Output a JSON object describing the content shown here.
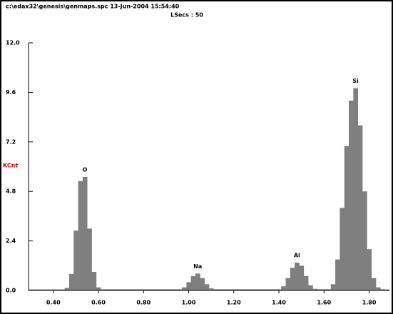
{
  "chart_data": {
    "type": "spectrum",
    "title": "c:\\edax32\\genesis\\genmaps.spc  13-Jun-2004 15:54:40",
    "subtitle": "LSecs : 50",
    "ylabel": "KCnt",
    "x": [
      0.3,
      0.32,
      0.34,
      0.36,
      0.38,
      0.4,
      0.42,
      0.44,
      0.46,
      0.48,
      0.5,
      0.52,
      0.54,
      0.56,
      0.58,
      0.6,
      0.62,
      0.64,
      0.66,
      0.68,
      0.7,
      0.72,
      0.74,
      0.76,
      0.78,
      0.8,
      0.82,
      0.84,
      0.86,
      0.88,
      0.9,
      0.92,
      0.94,
      0.96,
      0.98,
      1.0,
      1.02,
      1.04,
      1.06,
      1.08,
      1.1,
      1.12,
      1.14,
      1.16,
      1.18,
      1.2,
      1.22,
      1.24,
      1.26,
      1.28,
      1.3,
      1.32,
      1.34,
      1.36,
      1.38,
      1.4,
      1.42,
      1.44,
      1.46,
      1.48,
      1.5,
      1.52,
      1.54,
      1.56,
      1.58,
      1.6,
      1.62,
      1.64,
      1.66,
      1.68,
      1.7,
      1.72,
      1.74,
      1.76,
      1.78,
      1.8,
      1.82,
      1.84,
      1.86,
      1.88
    ],
    "values": [
      0.05,
      0.05,
      0.05,
      0.05,
      0.05,
      0.05,
      0.05,
      0.05,
      0.12,
      0.8,
      2.9,
      5.3,
      5.5,
      3.0,
      0.9,
      0.15,
      0.06,
      0.06,
      0.06,
      0.06,
      0.06,
      0.06,
      0.06,
      0.06,
      0.06,
      0.06,
      0.06,
      0.06,
      0.06,
      0.06,
      0.06,
      0.06,
      0.06,
      0.06,
      0.15,
      0.4,
      0.7,
      0.82,
      0.6,
      0.3,
      0.1,
      0.06,
      0.06,
      0.06,
      0.06,
      0.06,
      0.06,
      0.06,
      0.06,
      0.06,
      0.06,
      0.06,
      0.06,
      0.06,
      0.06,
      0.06,
      0.2,
      0.6,
      1.1,
      1.35,
      1.2,
      0.7,
      0.25,
      0.08,
      0.06,
      0.06,
      0.06,
      0.3,
      1.5,
      4.0,
      7.0,
      9.2,
      9.8,
      8.0,
      4.8,
      2.0,
      0.6,
      0.15,
      0.06,
      0.05
    ],
    "color": "#7f7f7f",
    "peak_labels": [
      "O",
      "Na",
      "Al",
      "Si"
    ],
    "xlim": [
      0.29,
      1.89
    ],
    "xticks": [
      {
        "value": 0.4,
        "label": "0.40"
      },
      {
        "value": 0.6,
        "label": "0.60"
      },
      {
        "value": 0.8,
        "label": "0.80"
      },
      {
        "value": 1.0,
        "label": "1.00"
      },
      {
        "value": 1.2,
        "label": "1.20"
      },
      {
        "value": 1.4,
        "label": "1.40"
      },
      {
        "value": 1.6,
        "label": "1.60"
      },
      {
        "value": 1.8,
        "label": "1.80"
      }
    ],
    "ylim": [
      0,
      12
    ],
    "yticks": [
      {
        "value": 0,
        "label": "0.0"
      },
      2.4,
      4.8,
      7.2,
      9.6,
      {
        "value": 12,
        "label": "12.0"
      }
    ]
  }
}
